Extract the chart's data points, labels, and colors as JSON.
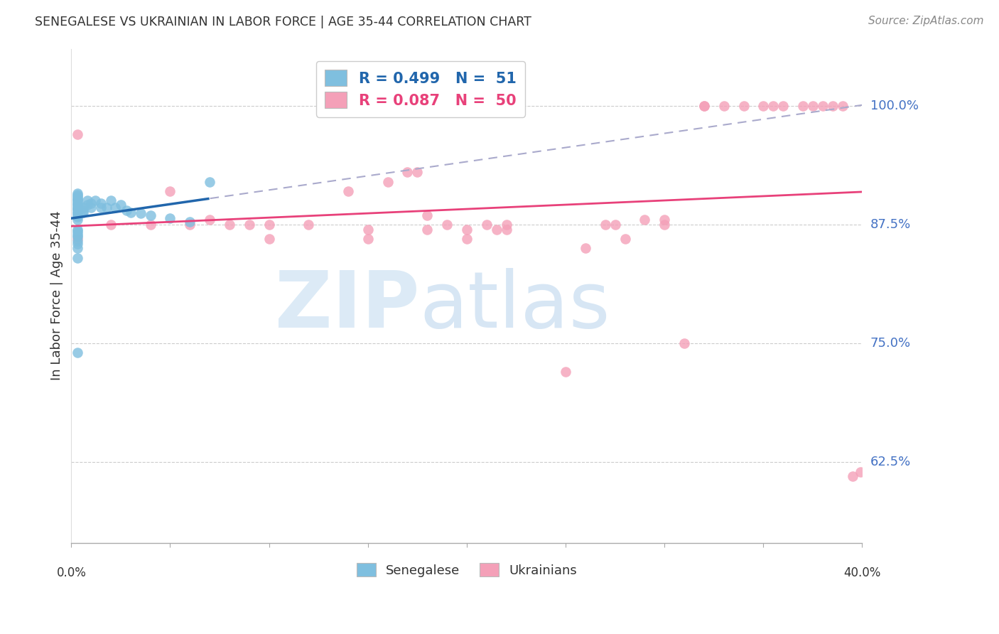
{
  "title": "SENEGALESE VS UKRAINIAN IN LABOR FORCE | AGE 35-44 CORRELATION CHART",
  "source": "Source: ZipAtlas.com",
  "ylabel": "In Labor Force | Age 35-44",
  "ytick_labels": [
    "100.0%",
    "87.5%",
    "75.0%",
    "62.5%"
  ],
  "ytick_values": [
    1.0,
    0.875,
    0.75,
    0.625
  ],
  "right_ytick_labels": [
    "100.0%",
    "87.5%",
    "75.0%",
    "62.5%"
  ],
  "right_ytick_values": [
    1.0,
    0.875,
    0.75,
    0.625
  ],
  "xlim": [
    0.0,
    0.4
  ],
  "ylim": [
    0.54,
    1.06
  ],
  "legend_blue_R": "R = 0.499",
  "legend_blue_N": "N =  51",
  "legend_pink_R": "R = 0.087",
  "legend_pink_N": "N =  50",
  "blue_color": "#7fbfdf",
  "pink_color": "#f4a0b8",
  "blue_line_color": "#2166ac",
  "pink_line_color": "#e8417a",
  "blue_scatter_x": [
    0.003,
    0.003,
    0.003,
    0.003,
    0.003,
    0.003,
    0.003,
    0.003,
    0.003,
    0.003,
    0.003,
    0.003,
    0.003,
    0.003,
    0.003,
    0.003,
    0.003,
    0.003,
    0.003,
    0.003,
    0.006,
    0.006,
    0.006,
    0.008,
    0.008,
    0.01,
    0.01,
    0.012,
    0.015,
    0.015,
    0.018,
    0.02,
    0.022,
    0.025,
    0.028,
    0.03,
    0.035,
    0.04,
    0.05,
    0.06,
    0.07,
    0.003,
    0.003,
    0.003,
    0.003,
    0.003,
    0.003,
    0.003,
    0.003,
    0.003,
    0.003
  ],
  "blue_scatter_y": [
    0.88,
    0.883,
    0.885,
    0.887,
    0.888,
    0.89,
    0.891,
    0.892,
    0.893,
    0.895,
    0.896,
    0.897,
    0.898,
    0.9,
    0.901,
    0.902,
    0.903,
    0.905,
    0.906,
    0.908,
    0.888,
    0.89,
    0.893,
    0.896,
    0.9,
    0.893,
    0.897,
    0.9,
    0.893,
    0.897,
    0.893,
    0.9,
    0.893,
    0.896,
    0.89,
    0.888,
    0.887,
    0.885,
    0.882,
    0.878,
    0.92,
    0.87,
    0.868,
    0.866,
    0.864,
    0.862,
    0.858,
    0.855,
    0.85,
    0.84,
    0.74
  ],
  "pink_scatter_x": [
    0.003,
    0.003,
    0.02,
    0.04,
    0.05,
    0.06,
    0.07,
    0.08,
    0.09,
    0.1,
    0.1,
    0.12,
    0.14,
    0.15,
    0.15,
    0.16,
    0.17,
    0.175,
    0.18,
    0.18,
    0.19,
    0.2,
    0.2,
    0.21,
    0.215,
    0.22,
    0.22,
    0.25,
    0.26,
    0.27,
    0.275,
    0.28,
    0.29,
    0.3,
    0.3,
    0.31,
    0.32,
    0.32,
    0.33,
    0.34,
    0.35,
    0.355,
    0.36,
    0.37,
    0.375,
    0.38,
    0.385,
    0.39,
    0.395,
    0.399
  ],
  "pink_scatter_y": [
    0.97,
    0.86,
    0.875,
    0.875,
    0.91,
    0.875,
    0.88,
    0.875,
    0.875,
    0.875,
    0.86,
    0.875,
    0.91,
    0.86,
    0.87,
    0.92,
    0.93,
    0.93,
    0.885,
    0.87,
    0.875,
    0.87,
    0.86,
    0.875,
    0.87,
    0.87,
    0.875,
    0.72,
    0.85,
    0.875,
    0.875,
    0.86,
    0.88,
    0.875,
    0.88,
    0.75,
    1.0,
    1.0,
    1.0,
    1.0,
    1.0,
    1.0,
    1.0,
    1.0,
    1.0,
    1.0,
    1.0,
    1.0,
    0.61,
    0.615
  ]
}
